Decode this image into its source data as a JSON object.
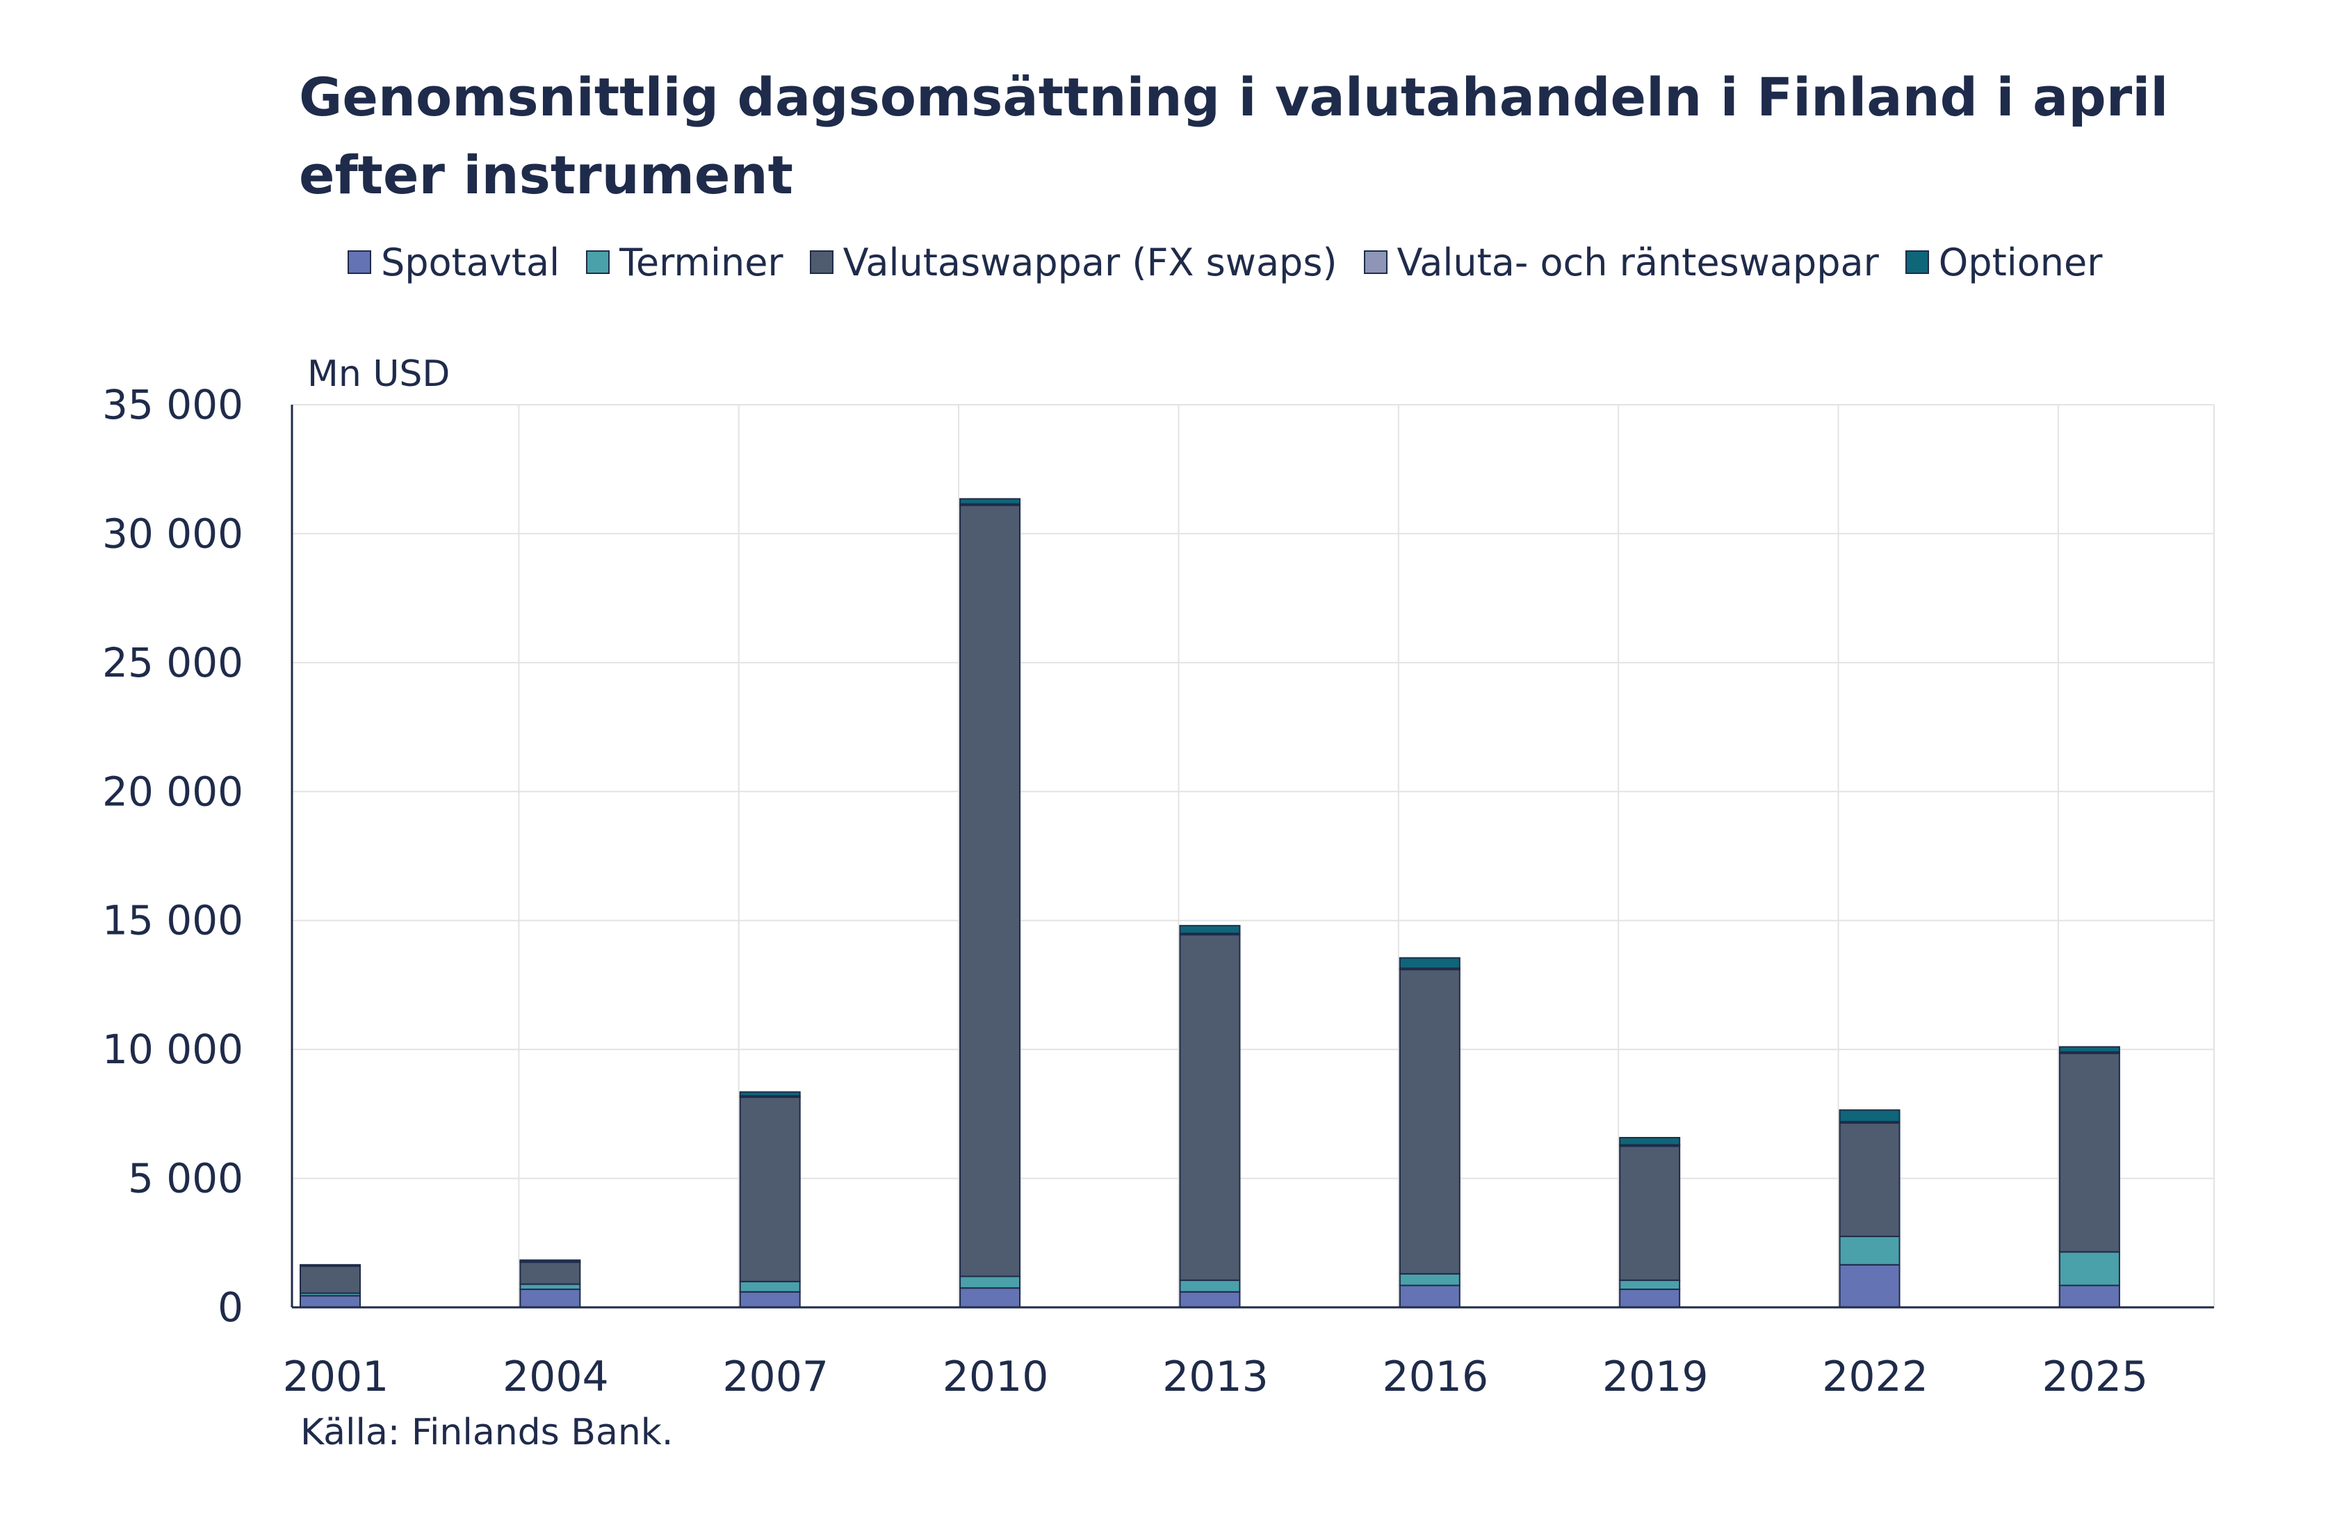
{
  "title": "Genomsnittlig dagsomsättning i valutahandeln i Finland i april efter instrument",
  "unit_label": "Mn USD",
  "source": "Källa: Finlands Bank.",
  "colors": {
    "Spotavtal": "#6473b3",
    "Terminer": "#4aa1aa",
    "Valutaswappar (FX swaps)": "#4f5b6e",
    "Valuta- och ränteswappar": "#8d96b7",
    "Optioner": "#0e6678",
    "axis": "#1f2b4a",
    "grid": "#e3e3e3"
  },
  "legend": [
    {
      "label": "Spotavtal",
      "color": "#6473b3"
    },
    {
      "label": "Terminer",
      "color": "#4aa1aa"
    },
    {
      "label": "Valutaswappar (FX swaps)",
      "color": "#4f5b6e"
    },
    {
      "label": "Valuta- och ränteswappar",
      "color": "#8d96b7"
    },
    {
      "label": "Optioner",
      "color": "#0e6678"
    }
  ],
  "chart_data": {
    "type": "bar",
    "stacked": true,
    "title": "Genomsnittlig dagsomsättning i valutahandeln i Finland i april efter instrument",
    "ylabel": "Mn USD",
    "xlabel": "",
    "categories": [
      "2001",
      "2004",
      "2007",
      "2010",
      "2013",
      "2016",
      "2019",
      "2022",
      "2025"
    ],
    "ylim": [
      0,
      35000
    ],
    "yticks": [
      0,
      5000,
      10000,
      15000,
      20000,
      25000,
      30000,
      35000
    ],
    "ytick_labels": [
      "0",
      "5 000",
      "10 000",
      "15 000",
      "20 000",
      "25 000",
      "30 000",
      "35 000"
    ],
    "grid": true,
    "legend_position": "top",
    "series": [
      {
        "name": "Spotavtal",
        "values": [
          450,
          700,
          600,
          750,
          600,
          850,
          700,
          1650,
          850
        ]
      },
      {
        "name": "Terminer",
        "values": [
          100,
          200,
          400,
          450,
          450,
          450,
          350,
          1100,
          1300
        ]
      },
      {
        "name": "Valutaswappar (FX swaps)",
        "values": [
          1050,
          850,
          7150,
          29900,
          13400,
          11800,
          5200,
          4400,
          7700
        ]
      },
      {
        "name": "Valuta- och ränteswappar",
        "values": [
          20,
          20,
          50,
          50,
          50,
          50,
          50,
          50,
          50
        ]
      },
      {
        "name": "Optioner",
        "values": [
          30,
          60,
          150,
          200,
          300,
          400,
          280,
          450,
          200
        ]
      }
    ]
  }
}
